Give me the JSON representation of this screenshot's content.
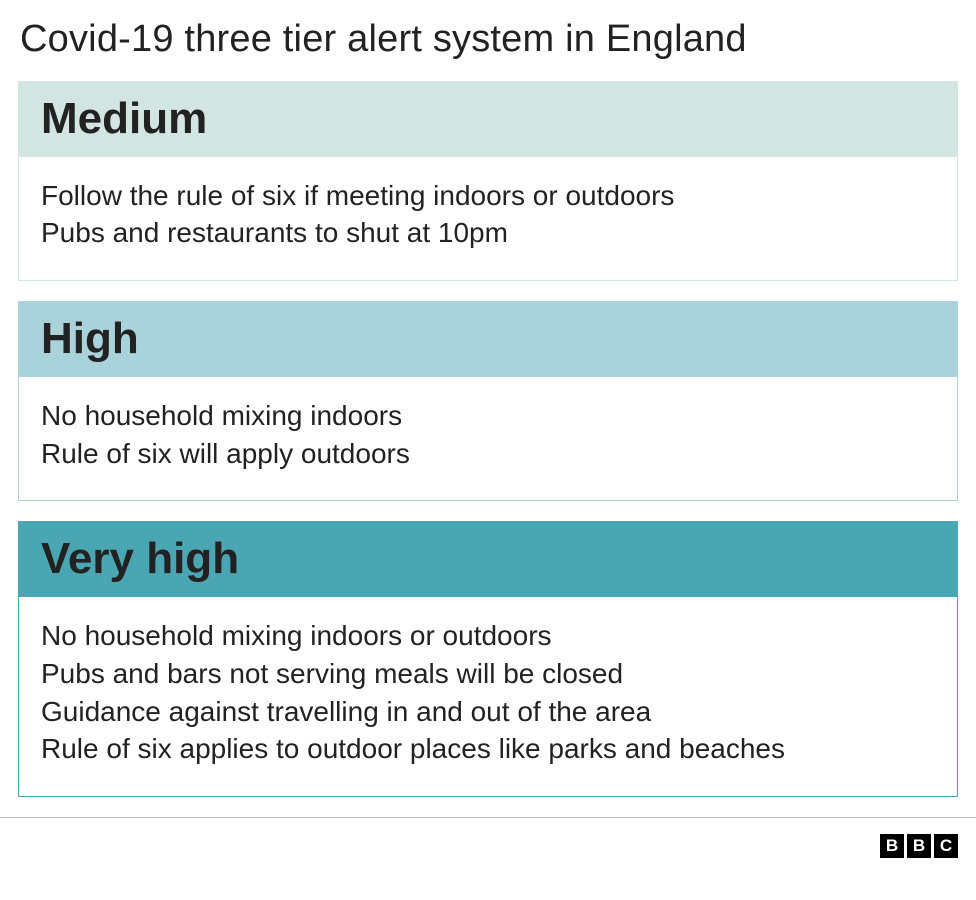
{
  "title": "Covid-19 three tier alert system in England",
  "title_fontsize": 38,
  "title_fontweight": 400,
  "title_color": "#222222",
  "background_color": "#ffffff",
  "body_fontsize": 28,
  "body_color": "#222222",
  "header_fontsize": 44,
  "header_fontweight": 700,
  "tiers": [
    {
      "label": "Medium",
      "header_bg": "#d3e5e1",
      "border_color": "#d3e5e1",
      "rules": [
        "Follow the rule of six if meeting indoors or outdoors",
        "Pubs and restaurants to shut at 10pm"
      ]
    },
    {
      "label": "High",
      "header_bg": "#a9d2db",
      "border_color": "#a9d2db",
      "rules": [
        "No household mixing indoors",
        "Rule of six will apply outdoors"
      ]
    },
    {
      "label": "Very high",
      "header_bg": "#4ba6b3",
      "border_color": "#4ba6b3",
      "rules": [
        "No household mixing indoors or outdoors",
        "Pubs and bars not serving meals will be closed",
        "Guidance against travelling in and out of the area",
        "Rule of six applies to outdoor places like parks and beaches"
      ]
    }
  ],
  "footer": {
    "divider_color": "#bfbfbf",
    "logo_letters": [
      "B",
      "B",
      "C"
    ],
    "logo_bg": "#000000",
    "logo_fg": "#ffffff"
  }
}
